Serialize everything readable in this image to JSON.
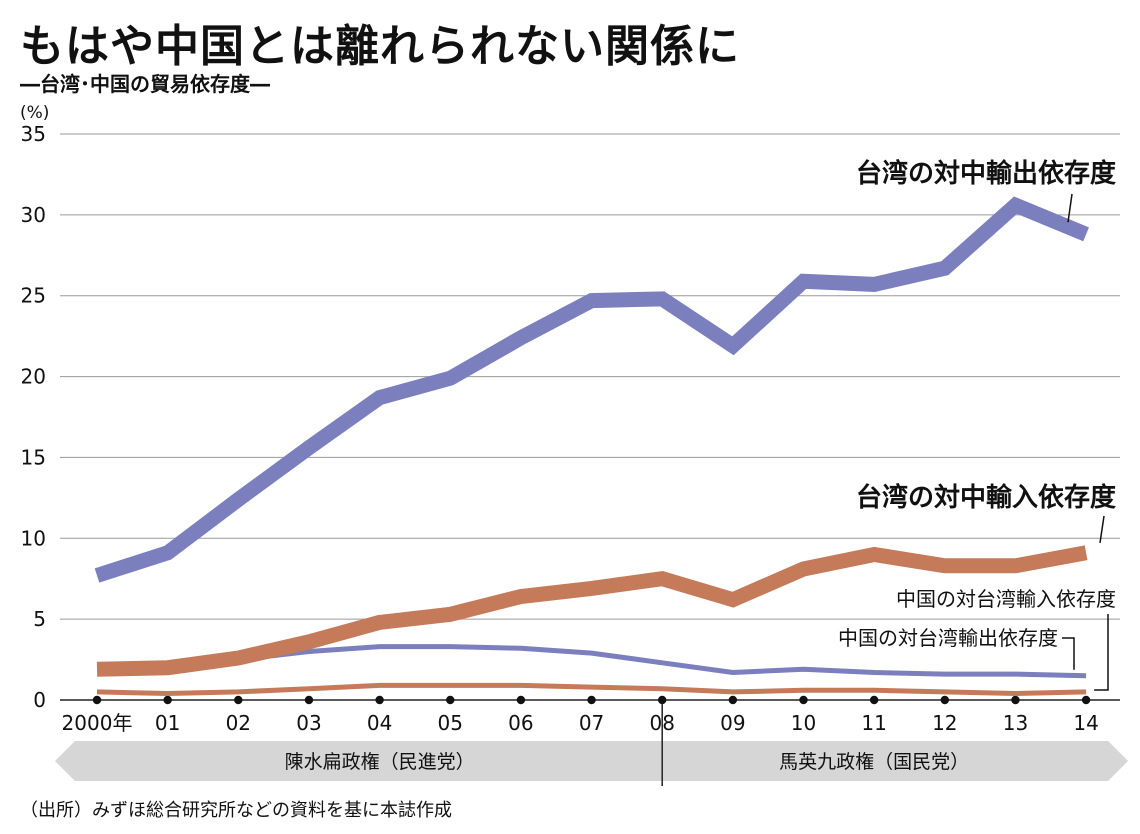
{
  "header": {
    "title": "もはや中国とは離れられない関係に",
    "subtitle": "―台湾･中国の貿易依存度―"
  },
  "footer": {
    "source": "（出所）みずほ総合研究所などの資料を基に本誌作成"
  },
  "chart_data": {
    "type": "line",
    "title": "もはや中国とは離れられない関係に",
    "subtitle": "台湾･中国の貿易依存度",
    "ylabel": "(%)",
    "ylim": [
      0,
      35
    ],
    "yticks": [
      0,
      5,
      10,
      15,
      20,
      25,
      30,
      35
    ],
    "grid": true,
    "categories": [
      "2000年",
      "01",
      "02",
      "03",
      "04",
      "05",
      "06",
      "07",
      "08",
      "09",
      "10",
      "11",
      "12",
      "13",
      "14"
    ],
    "series": [
      {
        "name": "台湾の対中輸出依存度",
        "color": "#7b7fbe",
        "width": "thick",
        "values": [
          7.7,
          9.1,
          12.4,
          15.6,
          18.7,
          19.9,
          22.4,
          24.7,
          24.8,
          21.9,
          25.9,
          25.7,
          26.7,
          30.6,
          28.8
        ]
      },
      {
        "name": "台湾の対中輸入依存度",
        "color": "#c57a5a",
        "width": "thick",
        "values": [
          1.9,
          2.0,
          2.6,
          3.6,
          4.8,
          5.3,
          6.4,
          6.9,
          7.5,
          6.2,
          8.1,
          9.0,
          8.3,
          8.3,
          9.1
        ]
      },
      {
        "name": "中国の対台湾輸出依存度",
        "color": "#7b7fbe",
        "width": "thin",
        "values": [
          1.9,
          2.0,
          2.5,
          3.0,
          3.3,
          3.3,
          3.2,
          2.9,
          2.3,
          1.7,
          1.9,
          1.7,
          1.6,
          1.6,
          1.5
        ]
      },
      {
        "name": "中国の対台湾輸入依存度",
        "color": "#c57a5a",
        "width": "thin",
        "values": [
          0.5,
          0.4,
          0.5,
          0.7,
          0.9,
          0.9,
          0.9,
          0.8,
          0.7,
          0.5,
          0.6,
          0.6,
          0.5,
          0.4,
          0.5
        ]
      }
    ],
    "annotations": [
      {
        "text": "台湾の対中輸出依存度",
        "series": 0,
        "style": "bold"
      },
      {
        "text": "台湾の対中輸入依存度",
        "series": 1,
        "style": "bold"
      },
      {
        "text": "中国の対台湾輸入依存度",
        "series": 3,
        "style": "normal"
      },
      {
        "text": "中国の対台湾輸出依存度",
        "series": 2,
        "style": "normal"
      }
    ],
    "periods": [
      {
        "label": "陳水扁政権（民進党）",
        "from": "2000年",
        "to": "08"
      },
      {
        "label": "馬英九政権（国民党）",
        "from": "08",
        "to": "14"
      }
    ]
  }
}
